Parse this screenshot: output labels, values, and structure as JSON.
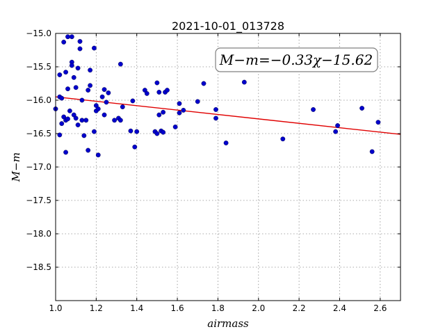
{
  "chart_data": {
    "type": "scatter",
    "title": "2021-10-01_013728",
    "xlabel": "airmass",
    "ylabel": "M−m",
    "xlim": [
      1.0,
      2.7
    ],
    "ylim": [
      -15.0,
      -19.0
    ],
    "y_inverted": true,
    "grid": true,
    "xticks": [
      1.0,
      1.2,
      1.4,
      1.6,
      1.8,
      2.0,
      2.2,
      2.4,
      2.6
    ],
    "xtick_labels": [
      "1.0",
      "1.2",
      "1.4",
      "1.6",
      "1.8",
      "2.0",
      "2.2",
      "2.4",
      "2.6"
    ],
    "yticks": [
      -15.0,
      -15.5,
      -16.0,
      -16.5,
      -17.0,
      -17.5,
      -18.0,
      -18.5
    ],
    "ytick_labels": [
      "−15.0",
      "−15.5",
      "−16.0",
      "−16.5",
      "−17.0",
      "−17.5",
      "−18.0",
      "−18.5"
    ],
    "annotation": "M−m=−0.33χ−15.62",
    "fit": {
      "slope": -0.33,
      "intercept": -15.62,
      "color": "#e00000"
    },
    "marker_color": "#0000cc",
    "points": [
      [
        1.0,
        -16.13
      ],
      [
        1.02,
        -15.62
      ],
      [
        1.02,
        -15.95
      ],
      [
        1.02,
        -16.52
      ],
      [
        1.03,
        -16.35
      ],
      [
        1.03,
        -15.97
      ],
      [
        1.04,
        -15.13
      ],
      [
        1.04,
        -16.25
      ],
      [
        1.05,
        -15.58
      ],
      [
        1.05,
        -16.3
      ],
      [
        1.06,
        -15.05
      ],
      [
        1.05,
        -16.78
      ],
      [
        1.06,
        -15.83
      ],
      [
        1.06,
        -16.28
      ],
      [
        1.07,
        -16.16
      ],
      [
        1.08,
        -15.05
      ],
      [
        1.08,
        -15.43
      ],
      [
        1.08,
        -15.48
      ],
      [
        1.09,
        -15.66
      ],
      [
        1.09,
        -16.22
      ],
      [
        1.1,
        -16.27
      ],
      [
        1.1,
        -15.81
      ],
      [
        1.11,
        -15.52
      ],
      [
        1.11,
        -16.37
      ],
      [
        1.12,
        -15.12
      ],
      [
        1.12,
        -15.23
      ],
      [
        1.13,
        -16.0
      ],
      [
        1.13,
        -16.3
      ],
      [
        1.14,
        -16.53
      ],
      [
        1.15,
        -16.3
      ],
      [
        1.16,
        -16.75
      ],
      [
        1.16,
        -15.85
      ],
      [
        1.17,
        -15.55
      ],
      [
        1.17,
        -15.78
      ],
      [
        1.19,
        -16.47
      ],
      [
        1.19,
        -15.22
      ],
      [
        1.2,
        -16.08
      ],
      [
        1.2,
        -16.16
      ],
      [
        1.21,
        -16.13
      ],
      [
        1.21,
        -16.82
      ],
      [
        1.23,
        -15.95
      ],
      [
        1.24,
        -15.84
      ],
      [
        1.24,
        -16.22
      ],
      [
        1.25,
        -16.03
      ],
      [
        1.26,
        -15.89
      ],
      [
        1.29,
        -16.3
      ],
      [
        1.31,
        -16.27
      ],
      [
        1.32,
        -15.46
      ],
      [
        1.32,
        -16.3
      ],
      [
        1.33,
        -16.1
      ],
      [
        1.37,
        -16.46
      ],
      [
        1.38,
        -16.01
      ],
      [
        1.39,
        -16.7
      ],
      [
        1.4,
        -16.47
      ],
      [
        1.44,
        -15.85
      ],
      [
        1.45,
        -15.9
      ],
      [
        1.49,
        -16.47
      ],
      [
        1.5,
        -16.5
      ],
      [
        1.5,
        -15.74
      ],
      [
        1.51,
        -16.22
      ],
      [
        1.51,
        -15.88
      ],
      [
        1.52,
        -16.46
      ],
      [
        1.53,
        -16.48
      ],
      [
        1.53,
        -16.18
      ],
      [
        1.54,
        -15.88
      ],
      [
        1.55,
        -15.85
      ],
      [
        1.59,
        -16.4
      ],
      [
        1.61,
        -16.05
      ],
      [
        1.61,
        -16.19
      ],
      [
        1.63,
        -16.15
      ],
      [
        1.7,
        -16.02
      ],
      [
        1.73,
        -15.75
      ],
      [
        1.79,
        -16.14
      ],
      [
        1.79,
        -16.27
      ],
      [
        1.84,
        -16.64
      ],
      [
        1.93,
        -15.73
      ],
      [
        2.12,
        -16.58
      ],
      [
        2.27,
        -16.14
      ],
      [
        2.38,
        -16.47
      ],
      [
        2.39,
        -16.38
      ],
      [
        2.51,
        -16.12
      ],
      [
        2.56,
        -16.77
      ],
      [
        2.59,
        -16.33
      ]
    ]
  }
}
